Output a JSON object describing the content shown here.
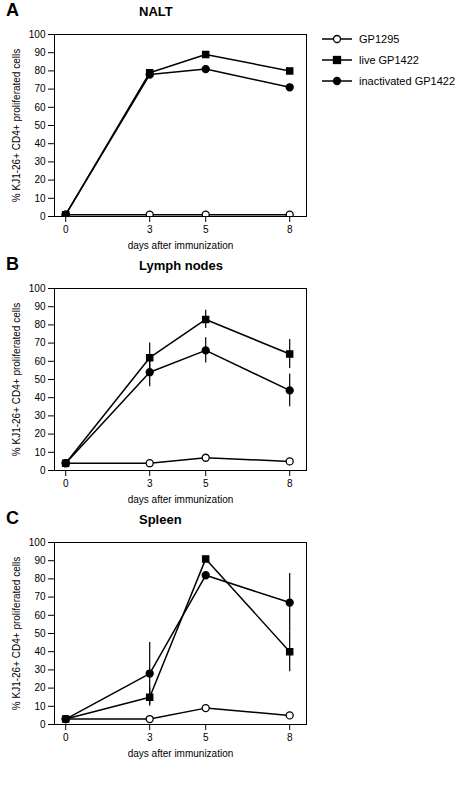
{
  "chart_data": [
    {
      "type": "line",
      "title": "NALT",
      "annotations": [
        "A"
      ],
      "x": [
        0,
        3,
        5,
        8
      ],
      "xlabel": "days after immunization",
      "ylabel": "% KJ1-26+ CD4+ proliferated cells",
      "xlim": [
        -0.4,
        8.6
      ],
      "xticks": [
        0,
        3,
        5,
        8
      ],
      "ylim": [
        0,
        100
      ],
      "yticks": [
        0,
        10,
        20,
        30,
        40,
        50,
        60,
        70,
        80,
        90,
        100
      ],
      "grid": false,
      "legend": "right",
      "series": [
        {
          "name": "GP1295",
          "color": "black",
          "marker": "open circle",
          "line_style": "solid",
          "values": [
            1,
            1,
            1,
            1
          ],
          "errors": [
            0,
            0,
            0,
            0
          ]
        },
        {
          "name": "live GP1422",
          "color": "black",
          "marker": "square",
          "line_style": "solid",
          "values": [
            1,
            79,
            89,
            80
          ],
          "errors": [
            0,
            0,
            0,
            0
          ]
        },
        {
          "name": "inactivated GP1422",
          "color": "black",
          "marker": "circle",
          "line_style": "solid",
          "values": [
            1,
            78,
            81,
            71
          ],
          "errors": [
            0,
            0,
            0,
            0
          ]
        }
      ]
    },
    {
      "type": "line",
      "title": "Lymph nodes",
      "annotations": [
        "B"
      ],
      "x": [
        0,
        3,
        5,
        8
      ],
      "xlabel": "days after immunization",
      "ylabel": "% KJ1-26+ CD4+ proliferated cells",
      "xlim": [
        -0.4,
        8.6
      ],
      "xticks": [
        0,
        3,
        5,
        8
      ],
      "ylim": [
        0,
        100
      ],
      "yticks": [
        0,
        10,
        20,
        30,
        40,
        50,
        60,
        70,
        80,
        90,
        100
      ],
      "grid": false,
      "legend": false,
      "series": [
        {
          "name": "GP1295",
          "color": "black",
          "marker": "open circle",
          "line_style": "solid",
          "values": [
            4,
            4,
            7,
            5
          ],
          "errors": [
            0,
            0,
            0,
            0
          ]
        },
        {
          "name": "live GP1422",
          "color": "black",
          "marker": "square",
          "line_style": "solid",
          "values": [
            4,
            62,
            83,
            64
          ],
          "errors": [
            0,
            8,
            5,
            8
          ]
        },
        {
          "name": "inactivated GP1422",
          "color": "black",
          "marker": "circle",
          "line_style": "solid",
          "values": [
            4,
            54,
            66,
            44
          ],
          "errors": [
            0,
            8,
            7,
            9
          ]
        }
      ]
    },
    {
      "type": "line",
      "title": "Spleen",
      "annotations": [
        "C"
      ],
      "x": [
        0,
        3,
        5,
        8
      ],
      "xlabel": "days after immunization",
      "ylabel": "% KJ1-26+ CD4+ proliferated cells",
      "xlim": [
        -0.4,
        8.6
      ],
      "xticks": [
        0,
        3,
        5,
        8
      ],
      "ylim": [
        0,
        100
      ],
      "yticks": [
        0,
        10,
        20,
        30,
        40,
        50,
        60,
        70,
        80,
        90,
        100
      ],
      "grid": false,
      "legend": false,
      "series": [
        {
          "name": "GP1295",
          "color": "black",
          "marker": "open circle",
          "line_style": "solid",
          "values": [
            3,
            3,
            9,
            5
          ],
          "errors": [
            0,
            0,
            0,
            0
          ]
        },
        {
          "name": "live GP1422",
          "color": "black",
          "marker": "square",
          "line_style": "solid",
          "values": [
            3,
            15,
            91,
            40
          ],
          "errors": [
            0,
            5,
            0,
            11
          ]
        },
        {
          "name": "inactivated GP1422",
          "color": "black",
          "marker": "circle",
          "line_style": "solid",
          "values": [
            3,
            28,
            82,
            67
          ],
          "errors": [
            0,
            17,
            0,
            16
          ]
        }
      ]
    }
  ]
}
